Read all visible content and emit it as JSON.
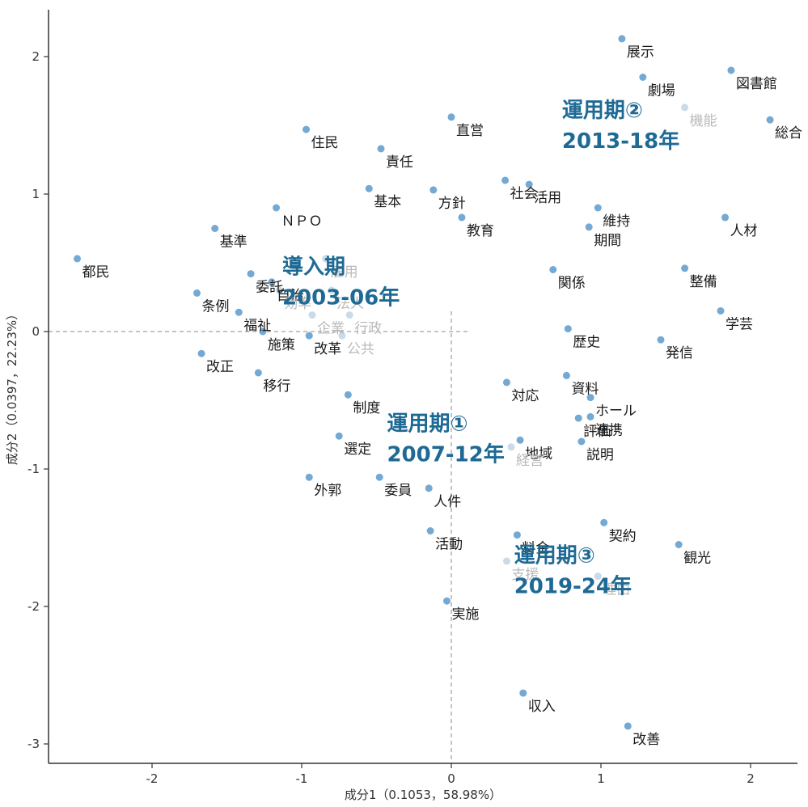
{
  "chart_data": {
    "type": "scatter",
    "xlabel": "成分1（0.1053，58.98%）",
    "ylabel": "成分2（0.0397，22.23%）",
    "xlim": [
      -2.65,
      2.3
    ],
    "ylim": [
      -3.2,
      2.35
    ],
    "x_ticks": [
      "-2",
      "-1",
      "0",
      "1",
      "2"
    ],
    "y_ticks": [
      "2",
      "1",
      "0",
      "-1",
      "-2",
      "-3"
    ],
    "point_color": "#74a9d4",
    "period_color": "#1e6a94",
    "reference_lines": "dashed at x=0 and y=0",
    "points": [
      {
        "label": "展示",
        "x": 1.14,
        "y": 2.13
      },
      {
        "label": "図書館",
        "x": 1.87,
        "y": 1.9
      },
      {
        "label": "劇場",
        "x": 1.28,
        "y": 1.85
      },
      {
        "label": "直営",
        "x": 0.0,
        "y": 1.56
      },
      {
        "label": "機能",
        "x": 1.56,
        "y": 1.63,
        "faded": true
      },
      {
        "label": "総合",
        "x": 2.13,
        "y": 1.54
      },
      {
        "label": "住民",
        "x": -0.97,
        "y": 1.47
      },
      {
        "label": "責任",
        "x": -0.47,
        "y": 1.33
      },
      {
        "label": "社会",
        "x": 0.36,
        "y": 1.1
      },
      {
        "label": "活用",
        "x": 0.52,
        "y": 1.07
      },
      {
        "label": "基本",
        "x": -0.55,
        "y": 1.04
      },
      {
        "label": "方針",
        "x": -0.12,
        "y": 1.03
      },
      {
        "label": "維持",
        "x": 0.98,
        "y": 0.9
      },
      {
        "label": "ＮＰＯ",
        "x": -1.17,
        "y": 0.9
      },
      {
        "label": "教育",
        "x": 0.07,
        "y": 0.83
      },
      {
        "label": "人材",
        "x": 1.83,
        "y": 0.83
      },
      {
        "label": "期間",
        "x": 0.92,
        "y": 0.76
      },
      {
        "label": "基準",
        "x": -1.58,
        "y": 0.75
      },
      {
        "label": "雇用",
        "x": -0.84,
        "y": 0.53,
        "faded": true
      },
      {
        "label": "整備",
        "x": 1.56,
        "y": 0.46
      },
      {
        "label": "関係",
        "x": 0.68,
        "y": 0.45
      },
      {
        "label": "都民",
        "x": -2.5,
        "y": 0.53
      },
      {
        "label": "委託",
        "x": -1.34,
        "y": 0.42
      },
      {
        "label": "自治",
        "x": -1.2,
        "y": 0.36
      },
      {
        "label": "効率",
        "x": -1.15,
        "y": 0.3,
        "faded": true
      },
      {
        "label": "法人",
        "x": -0.8,
        "y": 0.3,
        "faded": true
      },
      {
        "label": "条例",
        "x": -1.7,
        "y": 0.28
      },
      {
        "label": "福祉",
        "x": -1.42,
        "y": 0.14
      },
      {
        "label": "学芸",
        "x": 1.8,
        "y": 0.15
      },
      {
        "label": "企業",
        "x": -0.93,
        "y": 0.12,
        "faded": true
      },
      {
        "label": "行政",
        "x": -0.68,
        "y": 0.12,
        "faded": true
      },
      {
        "label": "発信",
        "x": 1.4,
        "y": -0.06
      },
      {
        "label": "改革",
        "x": -0.95,
        "y": -0.03
      },
      {
        "label": "公共",
        "x": -0.73,
        "y": -0.03,
        "faded": true
      },
      {
        "label": "施策",
        "x": -1.26,
        "y": 0.0
      },
      {
        "label": "歴史",
        "x": 0.78,
        "y": 0.02
      },
      {
        "label": "改正",
        "x": -1.67,
        "y": -0.16
      },
      {
        "label": "資料",
        "x": 0.77,
        "y": -0.32
      },
      {
        "label": "対応",
        "x": 0.37,
        "y": -0.37
      },
      {
        "label": "移行",
        "x": -1.29,
        "y": -0.3
      },
      {
        "label": "制度",
        "x": -0.69,
        "y": -0.46
      },
      {
        "label": "ホール",
        "x": 0.93,
        "y": -0.48
      },
      {
        "label": "連携",
        "x": 0.93,
        "y": -0.62
      },
      {
        "label": "評価",
        "x": 0.85,
        "y": -0.63
      },
      {
        "label": "地域",
        "x": 0.46,
        "y": -0.79
      },
      {
        "label": "説明",
        "x": 0.87,
        "y": -0.8
      },
      {
        "label": "選定",
        "x": -0.75,
        "y": -0.76
      },
      {
        "label": "経営",
        "x": 0.4,
        "y": -0.84,
        "faded": true
      },
      {
        "label": "外郭",
        "x": -0.95,
        "y": -1.06
      },
      {
        "label": "委員",
        "x": -0.48,
        "y": -1.06
      },
      {
        "label": "人件",
        "x": -0.15,
        "y": -1.14
      },
      {
        "label": "契約",
        "x": 1.02,
        "y": -1.39
      },
      {
        "label": "活動",
        "x": -0.14,
        "y": -1.45
      },
      {
        "label": "料金",
        "x": 0.44,
        "y": -1.48
      },
      {
        "label": "観光",
        "x": 1.52,
        "y": -1.55
      },
      {
        "label": "支援",
        "x": 0.37,
        "y": -1.67,
        "faded": true
      },
      {
        "label": "理由",
        "x": 0.98,
        "y": -1.78,
        "faded": true
      },
      {
        "label": "実施",
        "x": -0.03,
        "y": -1.96
      },
      {
        "label": "収入",
        "x": 0.48,
        "y": -2.63
      },
      {
        "label": "改善",
        "x": 1.18,
        "y": -2.87
      }
    ],
    "periods": [
      {
        "line1": "導入期",
        "line2": "2003-06年",
        "x": -1.13,
        "y": 0.42
      },
      {
        "line1": "運用期①",
        "line2": "2007-12年",
        "x": -0.43,
        "y": -0.72
      },
      {
        "line1": "運用期②",
        "line2": "2013-18年",
        "x": 0.74,
        "y": 1.56
      },
      {
        "line1": "運用期③",
        "line2": "2019-24年",
        "x": 0.42,
        "y": -1.68
      }
    ]
  }
}
